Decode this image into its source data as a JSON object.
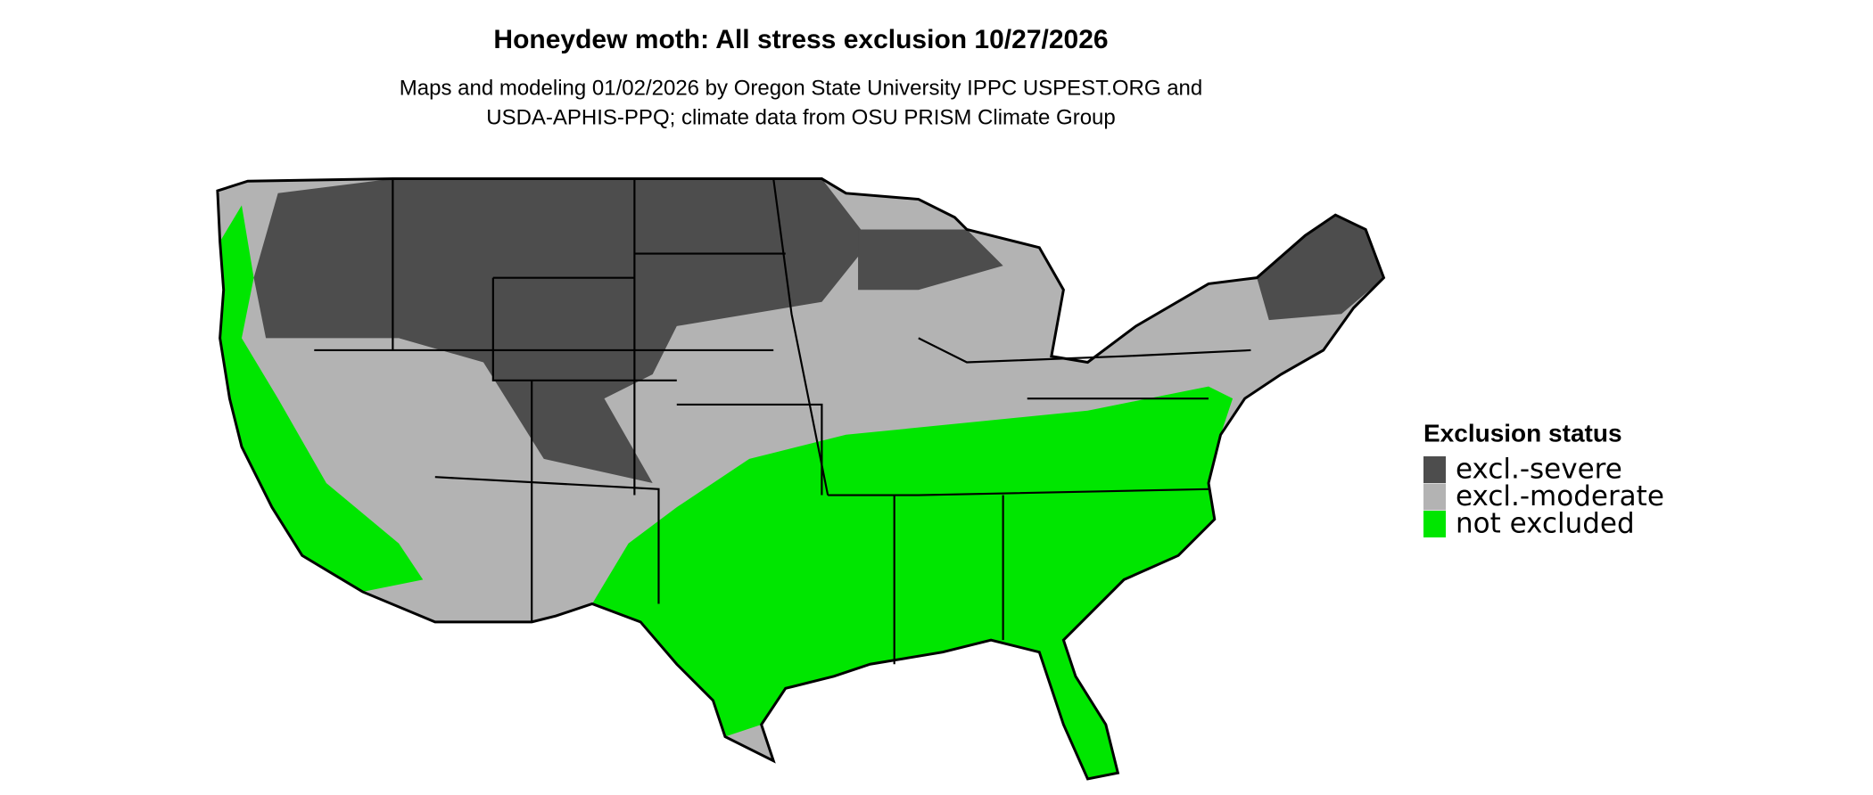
{
  "map": {
    "title": "Honeydew moth: All stress exclusion 10/27/2026",
    "subtitle": [
      "Maps and modeling 01/02/2026 by Oregon State University IPPC USPEST.ORG and",
      "USDA-APHIS-PPQ; climate data from OSU PRISM Climate Group"
    ],
    "legend": {
      "title": "Exclusion status",
      "items": [
        {
          "name": "excl.-severe",
          "color": "#4d4d4d"
        },
        {
          "name": "excl.-moderate",
          "color": "#b3b3b3"
        },
        {
          "name": "not excluded",
          "color": "#00e600"
        }
      ]
    }
  }
}
